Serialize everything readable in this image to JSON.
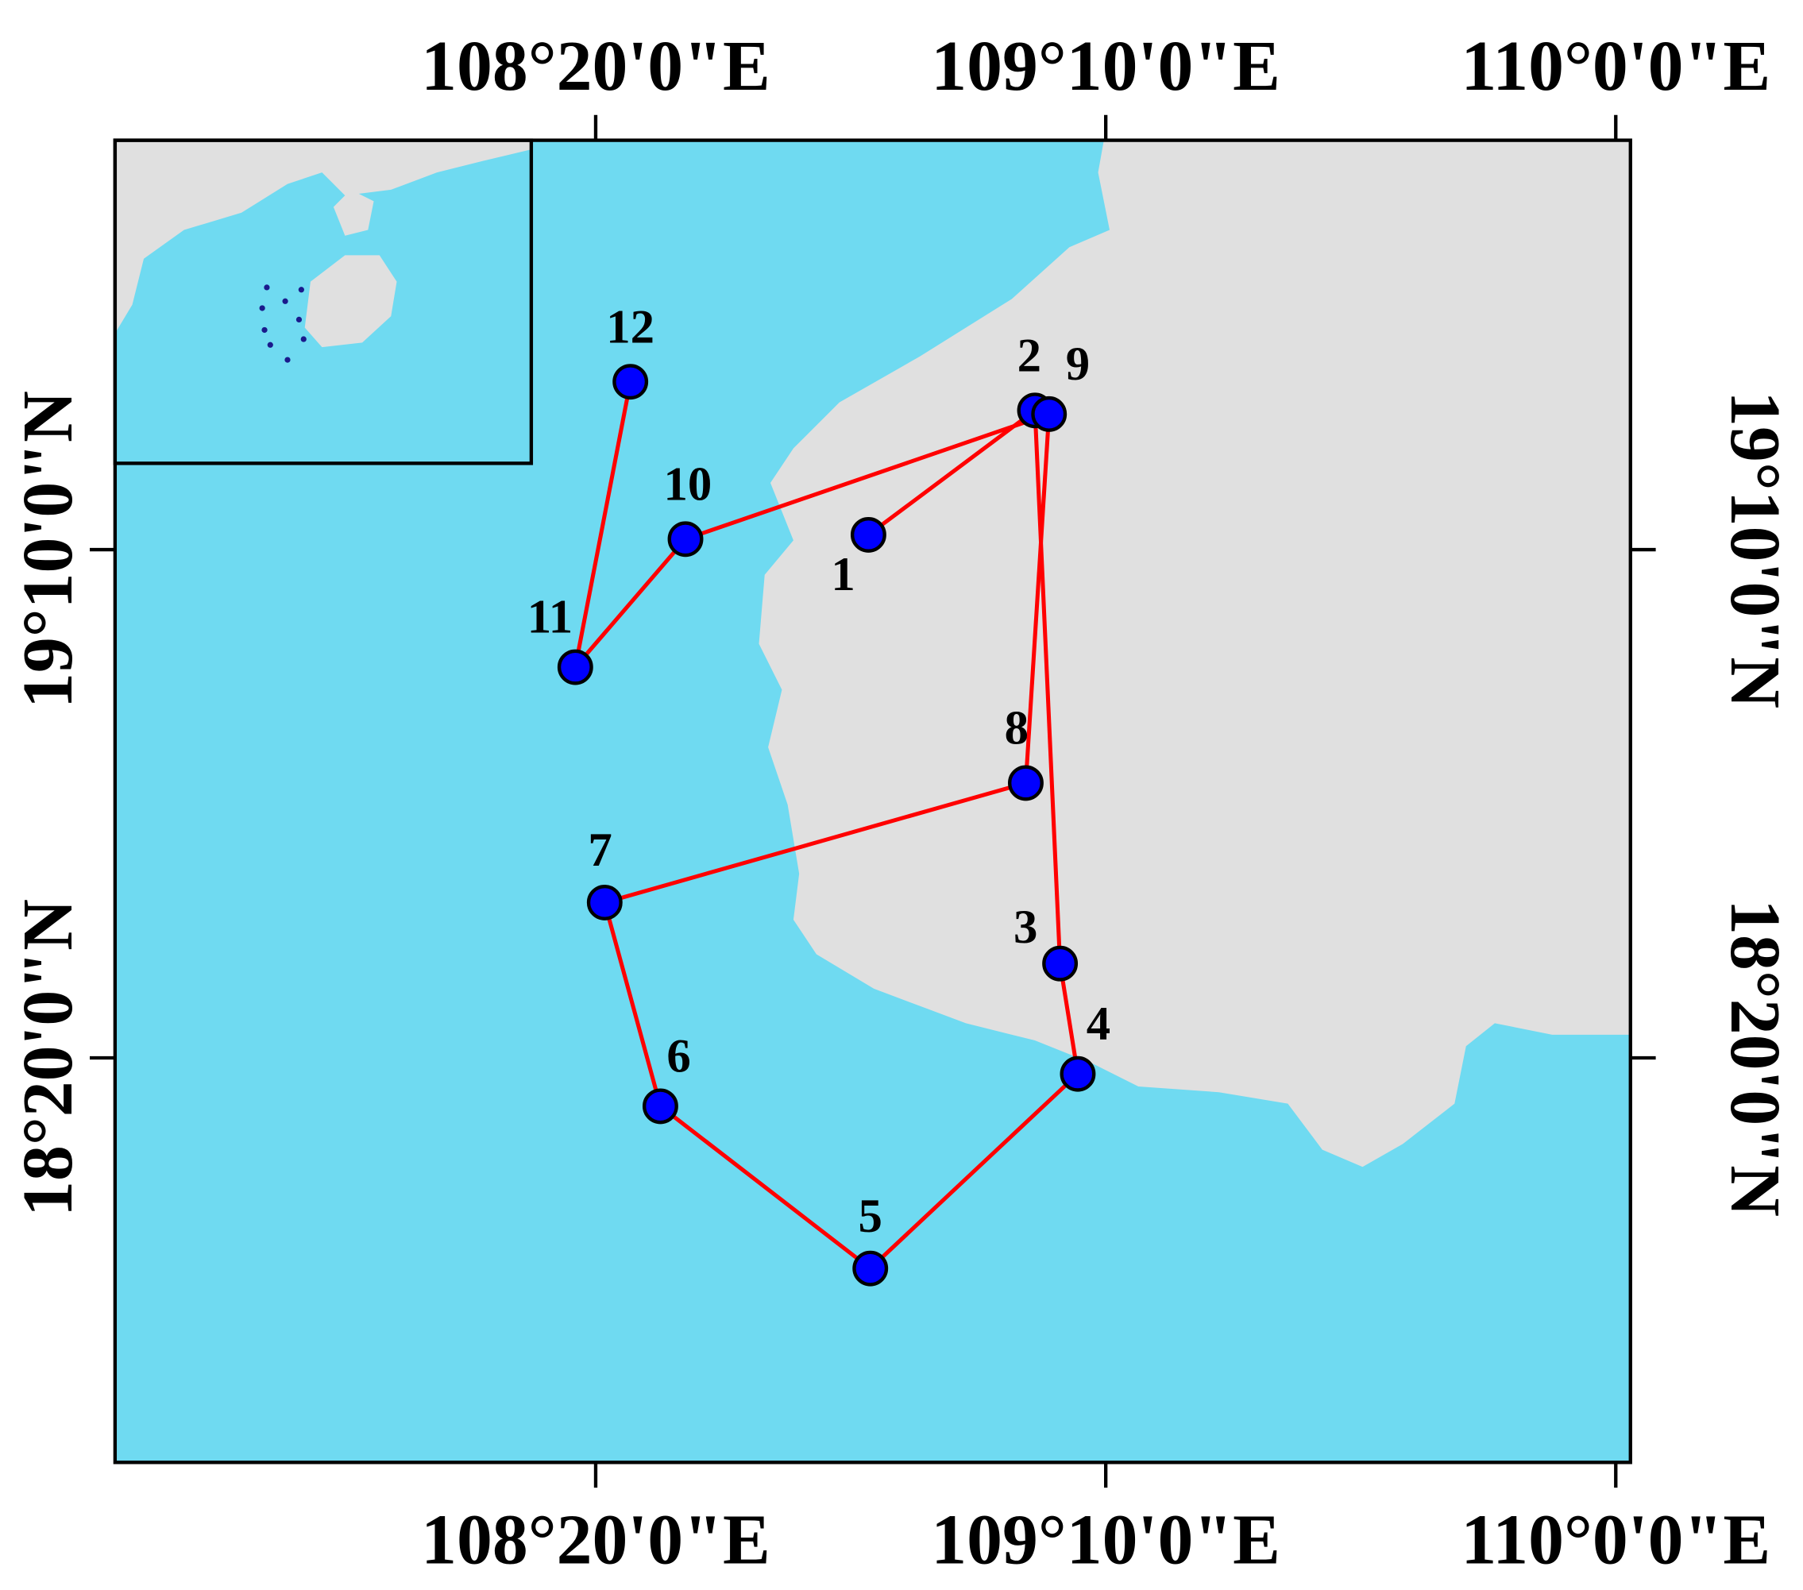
{
  "map": {
    "xlim": [
      107.548,
      110.024
    ],
    "ylim": [
      17.67,
      19.838
    ],
    "xticks": [
      {
        "value": 108.3333,
        "label": "108°20'0\"E"
      },
      {
        "value": 109.1667,
        "label": "109°10'0\"E"
      },
      {
        "value": 110.0,
        "label": "110°0'0\"E"
      }
    ],
    "yticks": [
      {
        "value": 18.3333,
        "label": "18°20'0\"N"
      },
      {
        "value": 19.1667,
        "label": "19°10'0\"N"
      }
    ],
    "route_color": "#ff0000",
    "station_color": "#0000ff",
    "stations": [
      {
        "label": "1",
        "lon": 108.779,
        "lat": 19.191
      },
      {
        "label": "2",
        "lon": 109.051,
        "lat": 19.395
      },
      {
        "label": "3",
        "lon": 109.092,
        "lat": 18.488
      },
      {
        "label": "4",
        "lon": 109.121,
        "lat": 18.307
      },
      {
        "label": "5",
        "lon": 108.782,
        "lat": 17.988
      },
      {
        "label": "6",
        "lon": 108.439,
        "lat": 18.254
      },
      {
        "label": "7",
        "lon": 108.348,
        "lat": 18.588
      },
      {
        "label": "8",
        "lon": 109.036,
        "lat": 18.784
      },
      {
        "label": "9",
        "lon": 109.074,
        "lat": 19.389
      },
      {
        "label": "10",
        "lon": 108.48,
        "lat": 19.184
      },
      {
        "label": "11",
        "lon": 108.3,
        "lat": 18.974
      },
      {
        "label": "12",
        "lon": 108.39,
        "lat": 19.442
      }
    ]
  }
}
